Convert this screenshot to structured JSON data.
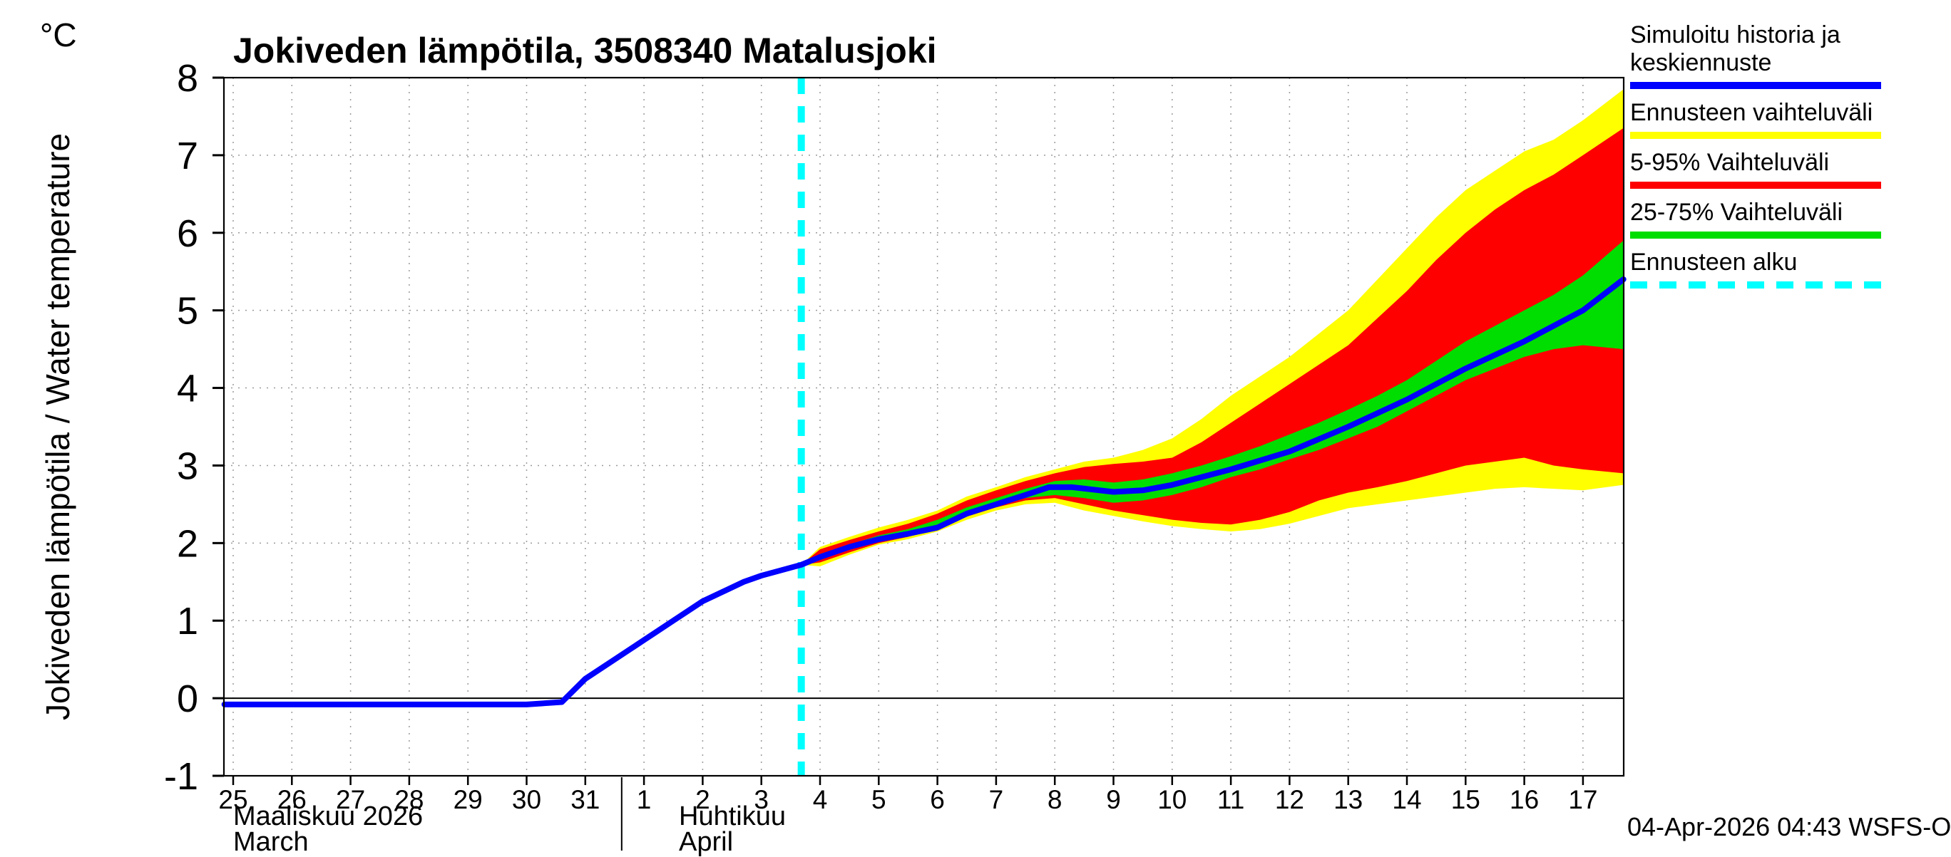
{
  "title": "Jokiveden lämpötila, 3508340 Matalusjoki",
  "y_axis": {
    "unit": "°C",
    "label": "Jokiveden lämpötila / Water temperature",
    "ticks": [
      -1,
      0,
      1,
      2,
      3,
      4,
      5,
      6,
      7,
      8
    ]
  },
  "x_axis": {
    "month_march_fi": "Maaliskuu 2026",
    "month_march_en": "March",
    "month_april_fi": "Huhtikuu",
    "month_april_en": "April"
  },
  "legend": [
    {
      "key": "median",
      "lines": [
        "Simuloitu historia ja",
        "keskiennuste"
      ],
      "color": "#0000ff",
      "style": "solid"
    },
    {
      "key": "full-range",
      "lines": [
        "Ennusteen vaihteluväli"
      ],
      "color": "#ffff00",
      "style": "solid"
    },
    {
      "key": "range-5-95",
      "lines": [
        "5-95% Vaihteluväli"
      ],
      "color": "#ff0000",
      "style": "solid"
    },
    {
      "key": "range-25-75",
      "lines": [
        "25-75% Vaihteluväli"
      ],
      "color": "#00dd00",
      "style": "solid"
    },
    {
      "key": "forecast-start",
      "lines": [
        "Ennusteen alku"
      ],
      "color": "#00ffff",
      "style": "dashed"
    }
  ],
  "footer": "04-Apr-2026 04:43 WSFS-O",
  "chart_data": {
    "type": "line",
    "title": "Jokiveden lämpötila, 3508340 Matalusjoki",
    "ylabel": "Jokiveden lämpötila / Water temperature (°C)",
    "ylim": [
      -1,
      8
    ],
    "grid": true,
    "legend_position": "outside-top-right",
    "x_unit": "day index: 0 = 25-Mar-2026, one unit per day, through 23 = 17-Apr-2026",
    "x_tick_labels": [
      "25",
      "26",
      "27",
      "28",
      "29",
      "30",
      "31",
      "1",
      "2",
      "3",
      "4",
      "5",
      "6",
      "7",
      "8",
      "9",
      "10",
      "11",
      "12",
      "13",
      "14",
      "15",
      "16",
      "17"
    ],
    "march_tick_count": 7,
    "forecast_start_x": 9.68,
    "forecast_line_color": "#00ffff",
    "series": [
      {
        "key": "median",
        "name": "Simuloitu historia ja keskiennuste",
        "color": "#0000ff",
        "x": [
          -0.15,
          1,
          2,
          3,
          4,
          5,
          5.6,
          6,
          6.5,
          7,
          7.5,
          8,
          8.7,
          9,
          9.68,
          10,
          10.5,
          11,
          11.5,
          12,
          12.5,
          13,
          13.5,
          13.9,
          14.3,
          15,
          15.5,
          16,
          16.5,
          17,
          18,
          19,
          20,
          21,
          22,
          23,
          23.69
        ],
        "y": [
          -0.08,
          -0.08,
          -0.08,
          -0.08,
          -0.08,
          -0.08,
          -0.05,
          0.25,
          0.5,
          0.75,
          1.0,
          1.25,
          1.5,
          1.58,
          1.72,
          1.82,
          1.95,
          2.05,
          2.12,
          2.2,
          2.38,
          2.5,
          2.62,
          2.72,
          2.72,
          2.66,
          2.68,
          2.75,
          2.85,
          2.95,
          3.18,
          3.5,
          3.85,
          4.25,
          4.6,
          5.0,
          5.4
        ]
      }
    ],
    "bands": [
      {
        "key": "full-range",
        "name": "Ennusteen vaihteluväli",
        "color": "#ffff00",
        "x": [
          9.68,
          10,
          10.5,
          11,
          11.5,
          12,
          12.5,
          13,
          13.5,
          14,
          14.5,
          15,
          15.5,
          16,
          16.5,
          17,
          17.5,
          18,
          18.5,
          19,
          19.5,
          20,
          20.5,
          21,
          21.5,
          22,
          22.5,
          23,
          23.69
        ],
        "upper": [
          1.72,
          1.95,
          2.08,
          2.2,
          2.3,
          2.42,
          2.6,
          2.72,
          2.85,
          2.95,
          3.05,
          3.1,
          3.2,
          3.35,
          3.6,
          3.9,
          4.15,
          4.4,
          4.7,
          5.0,
          5.4,
          5.8,
          6.2,
          6.55,
          6.8,
          7.05,
          7.2,
          7.45,
          7.85
        ],
        "lower": [
          1.72,
          1.7,
          1.85,
          1.98,
          2.05,
          2.15,
          2.3,
          2.42,
          2.5,
          2.52,
          2.42,
          2.35,
          2.28,
          2.22,
          2.18,
          2.15,
          2.18,
          2.25,
          2.35,
          2.45,
          2.5,
          2.55,
          2.6,
          2.65,
          2.7,
          2.72,
          2.7,
          2.68,
          2.75
        ]
      },
      {
        "key": "range-5-95",
        "name": "5-95% Vaihteluväli",
        "color": "#ff0000",
        "x": [
          9.68,
          10,
          10.5,
          11,
          11.5,
          12,
          12.5,
          13,
          13.5,
          14,
          14.5,
          15,
          15.5,
          16,
          16.5,
          17,
          17.5,
          18,
          18.5,
          19,
          19.5,
          20,
          20.5,
          21,
          21.5,
          22,
          22.5,
          23,
          23.69
        ],
        "upper": [
          1.72,
          1.92,
          2.04,
          2.15,
          2.25,
          2.38,
          2.55,
          2.68,
          2.8,
          2.9,
          2.98,
          3.02,
          3.05,
          3.1,
          3.3,
          3.55,
          3.8,
          4.05,
          4.3,
          4.55,
          4.9,
          5.25,
          5.65,
          6.0,
          6.3,
          6.55,
          6.75,
          7.0,
          7.35
        ],
        "lower": [
          1.72,
          1.75,
          1.88,
          2.0,
          2.08,
          2.18,
          2.34,
          2.46,
          2.55,
          2.58,
          2.5,
          2.42,
          2.36,
          2.3,
          2.26,
          2.24,
          2.3,
          2.4,
          2.55,
          2.65,
          2.72,
          2.8,
          2.9,
          3.0,
          3.05,
          3.1,
          3.0,
          2.95,
          2.9
        ]
      },
      {
        "key": "range-25-75",
        "name": "25-75% Vaihteluväli",
        "color": "#00dd00",
        "x": [
          9.68,
          10,
          10.5,
          11,
          11.5,
          12,
          12.5,
          13,
          13.5,
          14,
          14.5,
          15,
          15.5,
          16,
          16.5,
          17,
          17.5,
          18,
          18.5,
          19,
          19.5,
          20,
          20.5,
          21,
          21.5,
          22,
          22.5,
          23,
          23.69
        ],
        "upper": [
          1.72,
          1.86,
          1.98,
          2.1,
          2.18,
          2.3,
          2.46,
          2.58,
          2.7,
          2.8,
          2.82,
          2.78,
          2.82,
          2.9,
          3.0,
          3.12,
          3.25,
          3.4,
          3.55,
          3.72,
          3.9,
          4.1,
          4.35,
          4.6,
          4.8,
          5.0,
          5.2,
          5.45,
          5.9
        ],
        "lower": [
          1.72,
          1.78,
          1.92,
          2.02,
          2.1,
          2.2,
          2.36,
          2.48,
          2.58,
          2.62,
          2.58,
          2.52,
          2.55,
          2.62,
          2.72,
          2.85,
          2.95,
          3.08,
          3.2,
          3.35,
          3.5,
          3.7,
          3.9,
          4.1,
          4.25,
          4.4,
          4.5,
          4.55,
          4.5
        ]
      }
    ]
  }
}
